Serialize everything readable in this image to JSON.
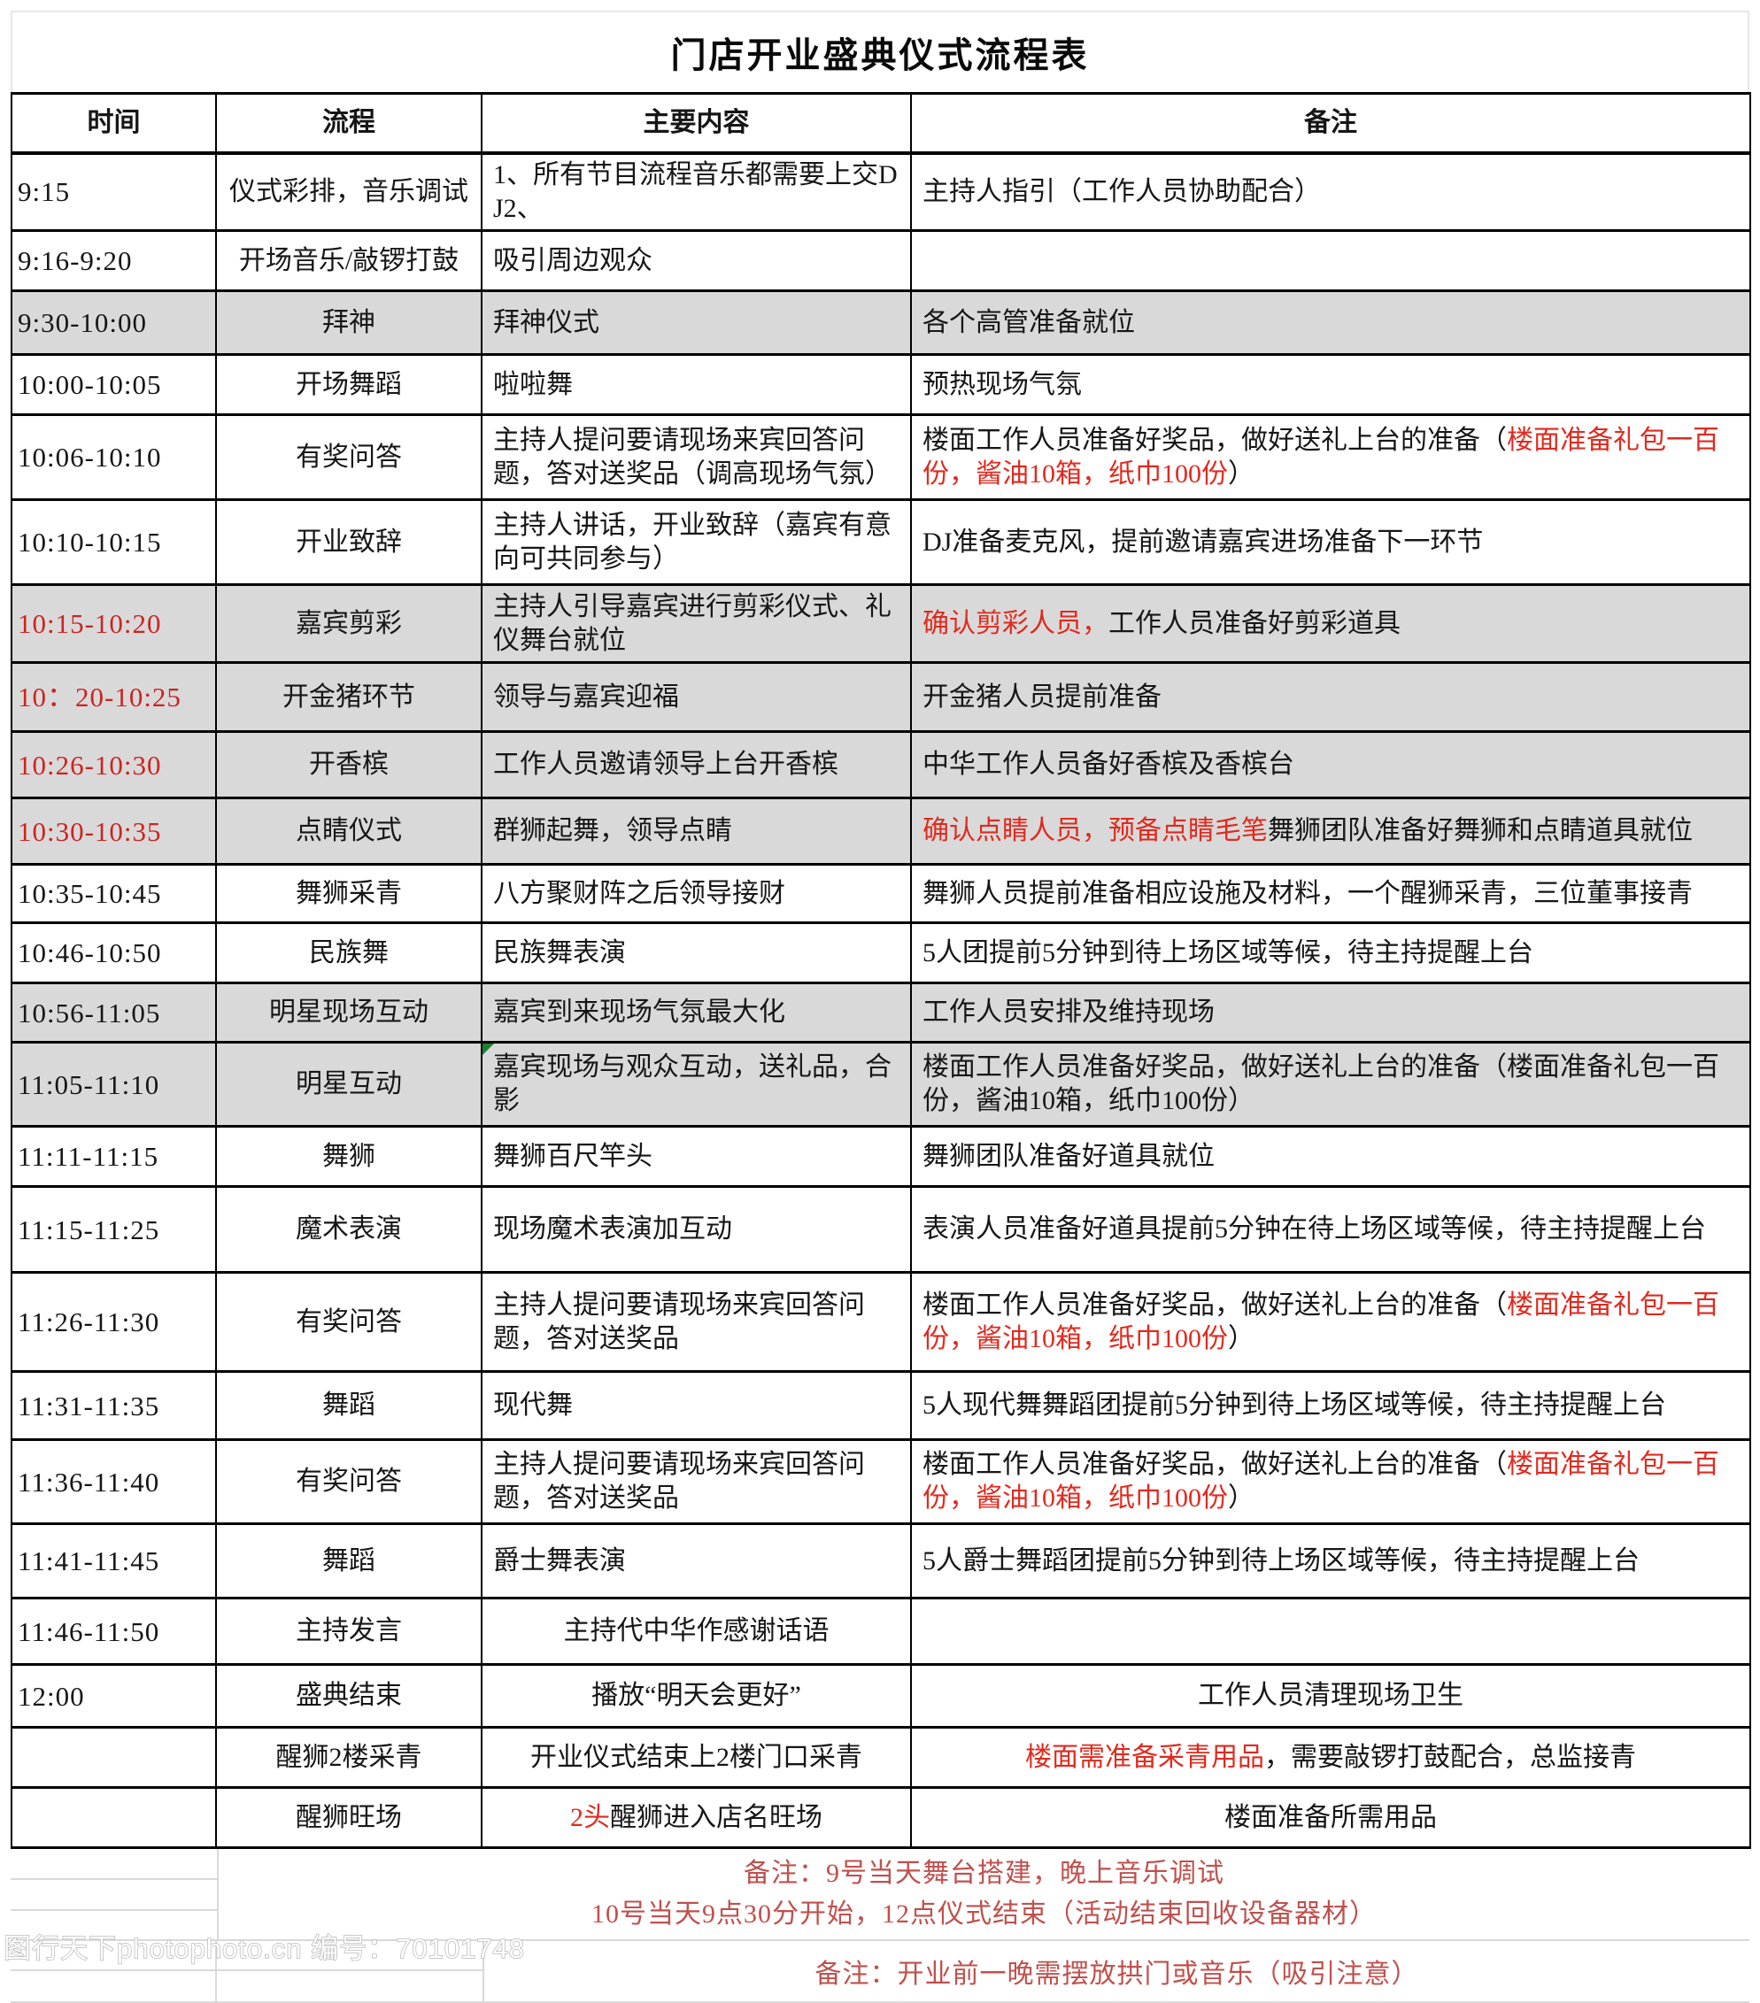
{
  "title": "门店开业盛典仪式流程表",
  "columns": [
    "时间",
    "流程",
    "主要内容",
    "备注"
  ],
  "colors": {
    "row_shade": "#d9d9d9",
    "time_red": "#cc2420",
    "cell_red": "#e02a1e",
    "footer_red": "#c0504d",
    "table_border": "#000000",
    "grid_gray": "#d9d9d9",
    "flag_green": "#1e7e34"
  },
  "rows": [
    {
      "h": 83,
      "time": "9:15",
      "process": "仪式彩排，音乐调试",
      "content": [
        {
          "t": "1、所有节目流程音乐都需要上交DJ2、"
        }
      ],
      "note": [
        {
          "t": "主持人指引（工作人员协助配合）"
        }
      ]
    },
    {
      "h": 68,
      "time": "9:16-9:20",
      "process": "开场音乐/敲锣打鼓",
      "content": [
        {
          "t": "吸引周边观众"
        }
      ],
      "note": []
    },
    {
      "h": 72,
      "time": "9:30-10:00",
      "process": "拜神",
      "content": [
        {
          "t": "拜神仪式"
        }
      ],
      "note": [
        {
          "t": "各个高管准备就位"
        }
      ],
      "shaded": true
    },
    {
      "h": 68,
      "time": "10:00-10:05",
      "process": "开场舞蹈",
      "content": [
        {
          "t": "啦啦舞"
        }
      ],
      "note": [
        {
          "t": "预热现场气氛"
        }
      ]
    },
    {
      "h": 96,
      "time": "10:06-10:10",
      "process": "有奖问答",
      "content": [
        {
          "t": "主持人提问要请现场来宾回答问题，答对送奖品（调高现场气氛）"
        }
      ],
      "note": [
        {
          "t": "楼面工作人员准备好奖品，做好送礼上台的准备（"
        },
        {
          "t": "楼面准备礼包一百份，酱油10箱，纸巾100份",
          "red": true
        },
        {
          "t": "）"
        }
      ]
    },
    {
      "h": 96,
      "time": "10:10-10:15",
      "process": "开业致辞",
      "content": [
        {
          "t": "主持人讲话，开业致辞（嘉宾有意向可共同参与）"
        }
      ],
      "note": [
        {
          "t": "DJ准备麦克风，提前邀请嘉宾进场准备下一环节"
        }
      ]
    },
    {
      "h": 88,
      "time": "10:15-10:20",
      "timeRed": true,
      "process": "嘉宾剪彩",
      "content": [
        {
          "t": "主持人引导嘉宾进行剪彩仪式、礼仪舞台就位"
        }
      ],
      "note": [
        {
          "t": "确认剪彩人员，",
          "red": true
        },
        {
          "t": "工作人员准备好剪彩道具"
        }
      ],
      "shaded": true
    },
    {
      "h": 78,
      "time": "10：20-10:25",
      "timeRed": true,
      "process": "开金猪环节",
      "content": [
        {
          "t": "领导与嘉宾迎福"
        }
      ],
      "note": [
        {
          "t": "开金猪人员提前准备"
        }
      ],
      "shaded": true
    },
    {
      "h": 75,
      "time": "10:26-10:30",
      "timeRed": true,
      "process": "开香槟",
      "content": [
        {
          "t": "工作人员邀请领导上台开香槟"
        }
      ],
      "note": [
        {
          "t": "中华工作人员备好香槟及香槟台"
        }
      ],
      "shaded": true
    },
    {
      "h": 75,
      "time": "10:30-10:35",
      "timeRed": true,
      "process": "点睛仪式",
      "content": [
        {
          "t": "群狮起舞，领导点睛"
        }
      ],
      "note": [
        {
          "t": "确认点睛人员，预备点睛毛笔",
          "red": true
        },
        {
          "t": "舞狮团队准备好舞狮和点睛道具就位"
        }
      ],
      "shaded": true
    },
    {
      "h": 66,
      "time": "10:35-10:45",
      "process": "舞狮采青",
      "content": [
        {
          "t": "八方聚财阵之后领导接财"
        }
      ],
      "note": [
        {
          "t": "舞狮人员提前准备相应设施及材料，一个醒狮采青，三位董事接青"
        }
      ]
    },
    {
      "h": 68,
      "time": "10:46-10:50",
      "process": "民族舞",
      "content": [
        {
          "t": "民族舞表演"
        }
      ],
      "note": [
        {
          "t": "5人团提前5分钟到待上场区域等候，待主持提醒上台"
        }
      ]
    },
    {
      "h": 67,
      "time": "10:56-11:05",
      "process": "明星现场互动",
      "content": [
        {
          "t": "嘉宾到来现场气氛最大化"
        }
      ],
      "note": [
        {
          "t": "工作人员安排及维持现场"
        }
      ],
      "shaded": true
    },
    {
      "h": 95,
      "time": "11:05-11:10",
      "process": "明星互动",
      "content": [
        {
          "t": "嘉宾现场与观众互动，送礼品，合影"
        }
      ],
      "note": [
        {
          "t": "楼面工作人员准备好奖品，做好送礼上台的准备（楼面准备礼包一百份，酱油10箱，纸巾100份）"
        }
      ],
      "shaded": true,
      "greenCorner": true
    },
    {
      "h": 68,
      "time": "11:11-11:15",
      "process": "舞狮",
      "content": [
        {
          "t": "舞狮百尺竿头"
        }
      ],
      "note": [
        {
          "t": "舞狮团队准备好道具就位"
        }
      ]
    },
    {
      "h": 97,
      "time": "11:15-11:25",
      "process": "魔术表演",
      "content": [
        {
          "t": "现场魔术表演加互动"
        }
      ],
      "note": [
        {
          "t": "表演人员准备好道具提前5分钟在待上场区域等候，待主持提醒上台"
        }
      ]
    },
    {
      "h": 112,
      "time": "11:26-11:30",
      "process": "有奖问答",
      "content": [
        {
          "t": "主持人提问要请现场来宾回答问题，答对送奖品"
        }
      ],
      "note": [
        {
          "t": "楼面工作人员准备好奖品，做好送礼上台的准备（"
        },
        {
          "t": "楼面准备礼包一百份，酱油10箱，纸巾100份",
          "red": true
        },
        {
          "t": "）"
        }
      ]
    },
    {
      "h": 77,
      "time": "11:31-11:35",
      "process": "舞蹈",
      "content": [
        {
          "t": "现代舞"
        }
      ],
      "note": [
        {
          "t": "5人现代舞舞蹈团提前5分钟到待上场区域等候，待主持提醒上台"
        }
      ]
    },
    {
      "h": 95,
      "time": "11:36-11:40",
      "process": "有奖问答",
      "content": [
        {
          "t": "主持人提问要请现场来宾回答问题，答对送奖品"
        }
      ],
      "note": [
        {
          "t": "楼面工作人员准备好奖品，做好送礼上台的准备（"
        },
        {
          "t": "楼面准备礼包一百份，酱油10箱，纸巾100份",
          "red": true
        },
        {
          "t": "）"
        }
      ]
    },
    {
      "h": 84,
      "time": "11:41-11:45",
      "process": "舞蹈",
      "content": [
        {
          "t": "爵士舞表演"
        }
      ],
      "note": [
        {
          "t": "5人爵士舞蹈团提前5分钟到待上场区域等候，待主持提醒上台"
        }
      ]
    },
    {
      "h": 75,
      "time": "11:46-11:50",
      "process": "主持发言",
      "content": [
        {
          "t": "主持代中华作感谢话语"
        }
      ],
      "note": [],
      "centerContent": true
    },
    {
      "h": 71,
      "time": "12:00",
      "process": "盛典结束",
      "content": [
        {
          "t": "播放“明天会更好”"
        }
      ],
      "note": [
        {
          "t": "工作人员清理现场卫生"
        }
      ],
      "centerContent": true
    },
    {
      "h": 68,
      "time": "",
      "process": "醒狮2楼采青",
      "content": [
        {
          "t": "开业仪式结束上2楼门口采青"
        }
      ],
      "note": [
        {
          "t": "楼面需准备采青用品",
          "red": true
        },
        {
          "t": "，需要敲锣打鼓配合，总监接青"
        }
      ],
      "centerContent": true
    },
    {
      "h": 68,
      "time": "",
      "process": "醒狮旺场",
      "content": [
        {
          "t": "2头",
          "red": true
        },
        {
          "t": "醒狮进入店名旺场"
        }
      ],
      "note": [
        {
          "t": "楼面准备所需用品"
        }
      ],
      "centerContent": true
    }
  ],
  "footer": {
    "note1_line1": "备注：9号当天舞台搭建，晚上音乐调试",
    "note1_line2": "10号当天9点30分开始，12点仪式结束（活动结束回收设备器材）",
    "note2": "备注：开业前一晚需摆放拱门或音乐（吸引注意）",
    "watermark": "图行天下photophoto.cn 编号：70101748"
  }
}
